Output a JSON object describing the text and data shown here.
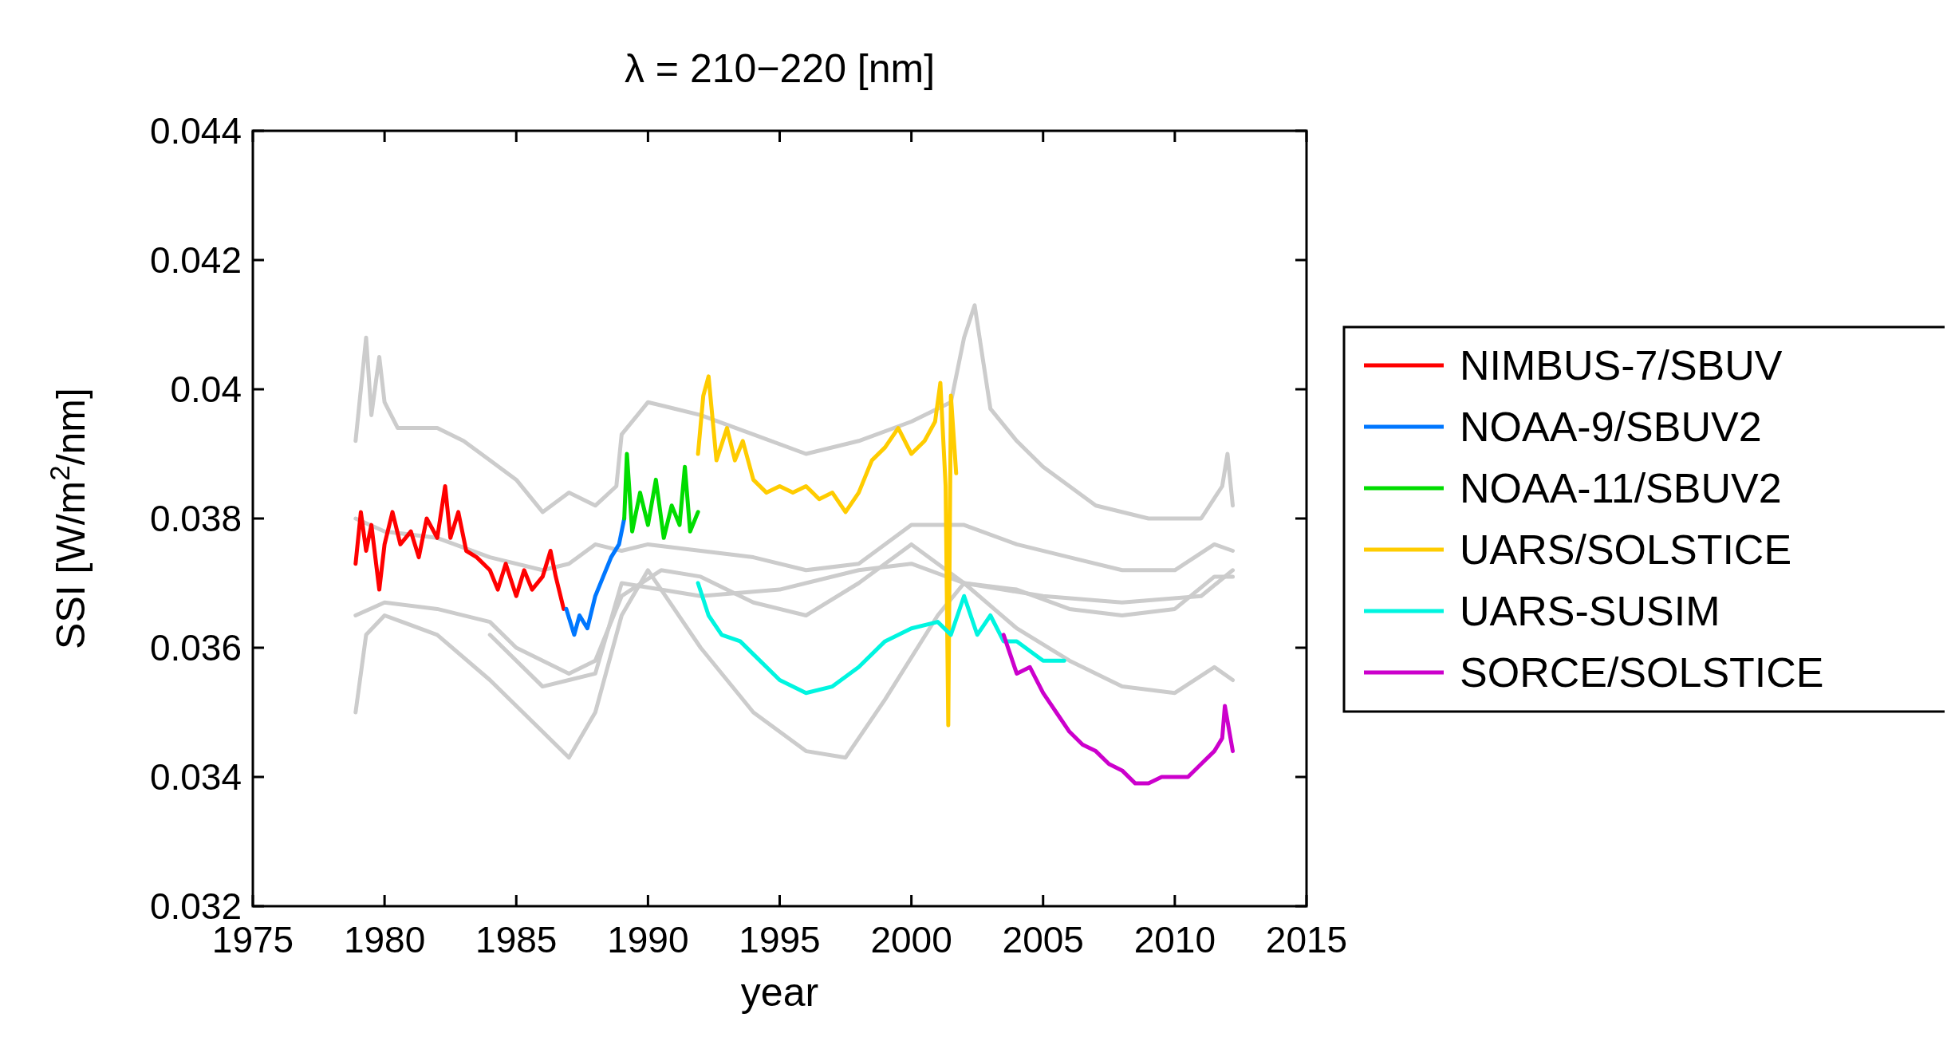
{
  "chart_data": {
    "type": "line",
    "title": "λ = 210−220 [nm]",
    "xlabel": "year",
    "ylabel": "SSI [W/m$^{2}$/nm]",
    "xlim": [
      1975,
      2015
    ],
    "xticks": [
      1975,
      1980,
      1985,
      1990,
      1995,
      2000,
      2005,
      2010,
      2015
    ],
    "ylim": [
      0.032,
      0.044
    ],
    "yticks": [
      0.032,
      0.034,
      0.036,
      0.038,
      0.04,
      0.042,
      0.044
    ],
    "grid": false,
    "legend": "right",
    "line_style": "solid",
    "marker": "none",
    "series": [
      {
        "color": "#cccccc",
        "x": [
          1978.9,
          1979.3,
          1979.5,
          1979.8,
          1980,
          1980.5,
          1981,
          1982,
          1983,
          1984,
          1985,
          1986,
          1987,
          1988,
          1988.8,
          1989,
          1990,
          1991,
          1992,
          1994,
          1996,
          1998,
          2000,
          2001.5,
          2002,
          2002.4,
          2003,
          2004,
          2005,
          2007,
          2009,
          2011,
          2011.8,
          2012,
          2012.2
        ],
        "values": [
          0.0392,
          0.0408,
          0.0396,
          0.0405,
          0.0398,
          0.0394,
          0.0394,
          0.0394,
          0.0392,
          0.0389,
          0.0386,
          0.0381,
          0.0384,
          0.0382,
          0.0385,
          0.0393,
          0.0398,
          0.0397,
          0.0396,
          0.0393,
          0.039,
          0.0392,
          0.0395,
          0.0398,
          0.0408,
          0.0413,
          0.0397,
          0.0392,
          0.0388,
          0.0382,
          0.038,
          0.038,
          0.0385,
          0.039,
          0.0382
        ]
      },
      {
        "color": "#cccccc",
        "x": [
          1978.9,
          1980,
          1982,
          1984,
          1986,
          1987,
          1988,
          1989,
          1990,
          1992,
          1994,
          1996,
          1998,
          2000,
          2002,
          2004,
          2006,
          2008,
          2010,
          2011.5,
          2012.2
        ],
        "values": [
          0.038,
          0.0378,
          0.0377,
          0.0374,
          0.0372,
          0.0373,
          0.0376,
          0.0375,
          0.0376,
          0.0375,
          0.0374,
          0.0372,
          0.0373,
          0.0379,
          0.0379,
          0.0376,
          0.0374,
          0.0372,
          0.0372,
          0.0376,
          0.0375
        ]
      },
      {
        "color": "#cccccc",
        "x": [
          1978.9,
          1980,
          1982,
          1984,
          1985,
          1986,
          1987,
          1988,
          1989,
          1990.5,
          1992,
          1994,
          1996,
          1998,
          2000,
          2002,
          2004,
          2006,
          2008,
          2010,
          2011.5,
          2012.2
        ],
        "values": [
          0.0365,
          0.0367,
          0.0366,
          0.0364,
          0.036,
          0.0358,
          0.0356,
          0.0358,
          0.0368,
          0.0372,
          0.0371,
          0.0367,
          0.0365,
          0.037,
          0.0376,
          0.037,
          0.0369,
          0.0366,
          0.0365,
          0.0366,
          0.0371,
          0.0371
        ]
      },
      {
        "color": "#cccccc",
        "x": [
          1978.9,
          1979.3,
          1980,
          1982,
          1984,
          1986,
          1987,
          1988,
          1989,
          1990,
          1992,
          1994,
          1996,
          1997.5,
          1999,
          2001,
          2002,
          2004,
          2006,
          2008,
          2010,
          2011.5,
          2012.2
        ],
        "values": [
          0.035,
          0.0362,
          0.0365,
          0.0362,
          0.0355,
          0.0347,
          0.0343,
          0.035,
          0.0365,
          0.0372,
          0.036,
          0.035,
          0.0344,
          0.0343,
          0.0352,
          0.0365,
          0.037,
          0.0363,
          0.0358,
          0.0354,
          0.0353,
          0.0357,
          0.0355
        ]
      },
      {
        "color": "#cccccc",
        "x": [
          1984,
          1986,
          1987,
          1988,
          1989,
          1992,
          1995,
          1998,
          2000,
          2002,
          2005,
          2008,
          2011,
          2012.2
        ],
        "values": [
          0.0362,
          0.0354,
          0.0355,
          0.0356,
          0.037,
          0.0368,
          0.0369,
          0.0372,
          0.0373,
          0.037,
          0.0368,
          0.0367,
          0.0368,
          0.0372
        ]
      },
      {
        "name": "NIMBUS-7/SBUV",
        "color": "#ff0000",
        "x": [
          1978.9,
          1979.1,
          1979.3,
          1979.5,
          1979.8,
          1980,
          1980.3,
          1980.6,
          1981,
          1981.3,
          1981.6,
          1982,
          1982.3,
          1982.5,
          1982.8,
          1983.1,
          1983.5,
          1984,
          1984.3,
          1984.6,
          1985,
          1985.3,
          1985.6,
          1986,
          1986.3,
          1986.5,
          1986.8
        ],
        "values": [
          0.0373,
          0.0381,
          0.0375,
          0.0379,
          0.0369,
          0.0376,
          0.0381,
          0.0376,
          0.0378,
          0.0374,
          0.038,
          0.0377,
          0.0385,
          0.0377,
          0.0381,
          0.0375,
          0.0374,
          0.0372,
          0.0369,
          0.0373,
          0.0368,
          0.0372,
          0.0369,
          0.0371,
          0.0375,
          0.0371,
          0.0366
        ]
      },
      {
        "name": "NOAA-9/SBUV2",
        "color": "#0077ff",
        "x": [
          1986.9,
          1987.2,
          1987.4,
          1987.7,
          1988,
          1988.3,
          1988.6,
          1988.9,
          1989.1
        ],
        "values": [
          0.0366,
          0.0362,
          0.0365,
          0.0363,
          0.0368,
          0.0371,
          0.0374,
          0.0376,
          0.038
        ]
      },
      {
        "name": "NOAA-11/SBUV2",
        "color": "#00dd00",
        "x": [
          1989.1,
          1989.2,
          1989.4,
          1989.7,
          1990,
          1990.3,
          1990.6,
          1990.9,
          1991.2,
          1991.4,
          1991.6,
          1991.9
        ],
        "values": [
          0.038,
          0.039,
          0.0378,
          0.0384,
          0.0379,
          0.0386,
          0.0377,
          0.0382,
          0.0379,
          0.0388,
          0.0378,
          0.0381
        ]
      },
      {
        "name": "UARS/SOLSTICE",
        "color": "#ffcc00",
        "x": [
          1991.9,
          1992.1,
          1992.3,
          1992.6,
          1993,
          1993.3,
          1993.6,
          1994,
          1994.5,
          1995,
          1995.5,
          1996,
          1996.5,
          1997,
          1997.5,
          1998,
          1998.5,
          1999,
          1999.5,
          2000,
          2000.5,
          2000.9,
          2001.1,
          2001.3,
          2001.4,
          2001.5,
          2001.7
        ],
        "values": [
          0.039,
          0.0399,
          0.0402,
          0.0389,
          0.0394,
          0.0389,
          0.0392,
          0.0386,
          0.0384,
          0.0385,
          0.0384,
          0.0385,
          0.0383,
          0.0384,
          0.0381,
          0.0384,
          0.0389,
          0.0391,
          0.0394,
          0.039,
          0.0392,
          0.0395,
          0.0401,
          0.0385,
          0.0348,
          0.0399,
          0.0387
        ]
      },
      {
        "name": "UARS-SUSIM",
        "color": "#00f5e0",
        "x": [
          1991.9,
          1992.3,
          1992.8,
          1993.5,
          1994,
          1995,
          1996,
          1997,
          1998,
          1999,
          2000,
          2001,
          2001.5,
          2002,
          2002.5,
          2003,
          2003.5,
          2004,
          2005,
          2005.8
        ],
        "values": [
          0.037,
          0.0365,
          0.0362,
          0.0361,
          0.0359,
          0.0355,
          0.0353,
          0.0354,
          0.0357,
          0.0361,
          0.0363,
          0.0364,
          0.0362,
          0.0368,
          0.0362,
          0.0365,
          0.0361,
          0.0361,
          0.0358,
          0.0358
        ]
      },
      {
        "name": "SORCE/SOLSTICE",
        "color": "#cc00cc",
        "x": [
          2003.5,
          2004,
          2004.5,
          2005,
          2005.5,
          2006,
          2006.5,
          2007,
          2007.5,
          2008,
          2008.5,
          2009,
          2009.5,
          2010,
          2010.5,
          2011,
          2011.5,
          2011.8,
          2011.9,
          2012.2
        ],
        "values": [
          0.0362,
          0.0356,
          0.0357,
          0.0353,
          0.035,
          0.0347,
          0.0345,
          0.0344,
          0.0342,
          0.0341,
          0.0339,
          0.0339,
          0.034,
          0.034,
          0.034,
          0.0342,
          0.0344,
          0.0346,
          0.0351,
          0.0344
        ]
      }
    ]
  }
}
